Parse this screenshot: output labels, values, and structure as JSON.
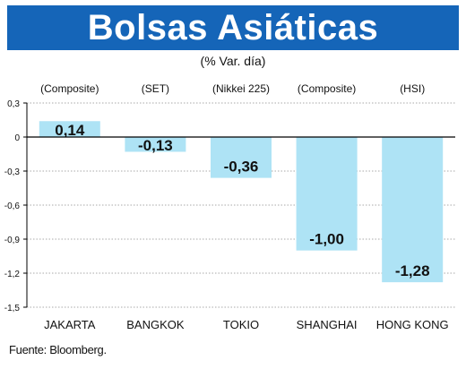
{
  "header": {
    "title": "Bolsas Asiáticas",
    "subtitle": "(% Var. día)"
  },
  "footer": {
    "source": "Fuente: Bloomberg."
  },
  "colors": {
    "banner": "#1565b8",
    "bar": "#aee3f5",
    "grid": "#8c8c8c",
    "axis": "#000000"
  },
  "chart_data": {
    "type": "bar",
    "title": "Bolsas Asiáticas",
    "subtitle": "(% Var. día)",
    "categories": [
      "JAKARTA",
      "BANGKOK",
      "TOKIO",
      "SHANGHAI",
      "HONG KONG"
    ],
    "index_labels": [
      "(Composite)",
      "(SET)",
      "(Nikkei 225)",
      "(Composite)",
      "(HSI)"
    ],
    "values": [
      0.14,
      -0.13,
      -0.36,
      -1.0,
      -1.28
    ],
    "value_labels": [
      "0,14",
      "-0,13",
      "-0,36",
      "-1,00",
      "-1,28"
    ],
    "y_ticks": [
      0.3,
      0,
      -0.3,
      -0.6,
      -0.9,
      -1.2,
      -1.5
    ],
    "y_tick_labels": [
      "0,3",
      "0",
      "-0,3",
      "-0,6",
      "-0,9",
      "-1,2",
      "-1,5"
    ],
    "ylim": [
      -1.5,
      0.3
    ],
    "grid": true,
    "xlabel": "",
    "ylabel": ""
  }
}
